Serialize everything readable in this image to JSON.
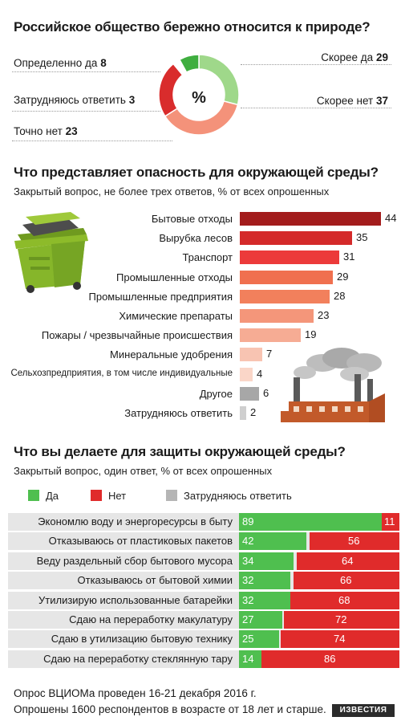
{
  "section1": {
    "title": "Российское общество бережно относится к природе?",
    "center_symbol": "%",
    "items": [
      {
        "label": "Определенно да",
        "value": "8",
        "color": "#3fae3f"
      },
      {
        "label": "Скорее да",
        "value": "29",
        "color": "#9fd88a"
      },
      {
        "label": "Скорее нет",
        "value": "37",
        "color": "#f4927a"
      },
      {
        "label": "Точно нет",
        "value": "23",
        "color": "#d92c2c"
      },
      {
        "label": "Затрудняюсь ответить",
        "value": "3",
        "color": "#ffffff"
      }
    ]
  },
  "section2": {
    "title": "Что представляет опасность для окружающей среды?",
    "subtitle": "Закрытый вопрос, не более трех ответов, % от всех опрошенных"
  },
  "section3": {
    "title": "Что вы делаете для защиты окружающей среды?",
    "subtitle": "Закрытый вопрос, один ответ, % от всех опрошенных",
    "legend": {
      "yes": "Да",
      "no": "Нет",
      "unsure": "Затрудняюсь ответить"
    }
  },
  "footer": {
    "line1": "Опрос ВЦИОМа проведен 16-21 декабря 2016 г.",
    "line2": "Опрошены 1600 респондентов в возрасте от 18 лет и старше.",
    "logo": "ИЗВЕСТИЯ"
  },
  "chart_data": [
    {
      "type": "pie",
      "title": "Российское общество бережно относится к природе?",
      "categories": [
        "Определенно да",
        "Скорее да",
        "Скорее нет",
        "Точно нет",
        "Затрудняюсь ответить"
      ],
      "values": [
        8,
        29,
        37,
        23,
        3
      ]
    },
    {
      "type": "bar",
      "title": "Что представляет опасность для окружающей среды?",
      "categories": [
        "Бытовые отходы",
        "Вырубка лесов",
        "Транспорт",
        "Промышленные отходы",
        "Промышленные предприятия",
        "Химические препараты",
        "Пожары / чрезвычайные происшествия",
        "Минеральные удобрения",
        "Сельхозпредприятия, в том числе индивидуальные",
        "Другое",
        "Затрудняюсь ответить"
      ],
      "values": [
        44,
        35,
        31,
        29,
        28,
        23,
        19,
        7,
        4,
        6,
        2
      ],
      "colors": [
        "#a31c1c",
        "#d42a2a",
        "#ec3a3a",
        "#f0704f",
        "#f2805c",
        "#f4967a",
        "#f6ac94",
        "#f8c4b2",
        "#fad6c8",
        "#a7a7a7",
        "#cfcfcf"
      ]
    },
    {
      "type": "bar",
      "title": "Что вы делаете для защиты окружающей среды?",
      "categories": [
        "Экономлю воду и энергоресурсы в быту",
        "Отказываюсь от пластиковых пакетов",
        "Веду раздельный сбор бытового мусора",
        "Отказываюсь от бытовой химии",
        "Утилизирую использованные батарейки",
        "Сдаю на переработку макулатуру",
        "Сдаю в утилизацию бытовую технику",
        "Сдаю на переработку стеклянную тару"
      ],
      "series": [
        {
          "name": "Да",
          "values": [
            89,
            42,
            34,
            32,
            32,
            27,
            25,
            14
          ]
        },
        {
          "name": "Нет",
          "values": [
            11,
            56,
            64,
            66,
            68,
            72,
            74,
            86
          ]
        },
        {
          "name": "Затрудняюсь ответить",
          "values": [
            0,
            2,
            2,
            2,
            0,
            1,
            1,
            0
          ]
        }
      ]
    }
  ]
}
